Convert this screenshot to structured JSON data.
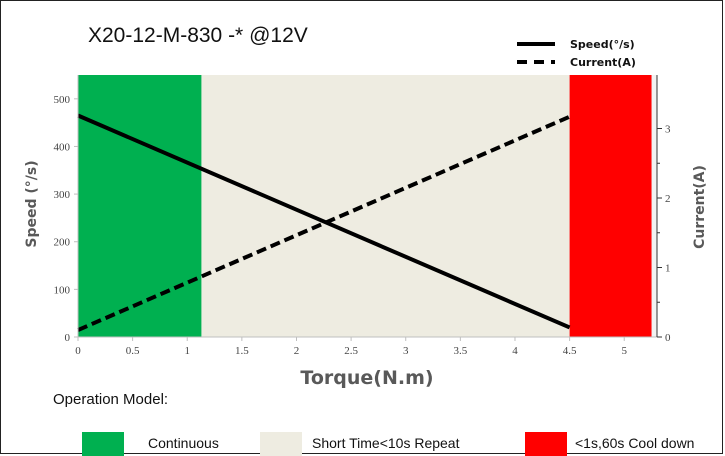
{
  "chart_data": {
    "type": "line",
    "title": "X20-12-M-830 -*  @12V",
    "xlabel": "Torque(N.m)",
    "ylabel": "Speed  (°/s)",
    "y2label": "Current(A)",
    "xlim": [
      0,
      5.3
    ],
    "ylim": [
      0,
      550
    ],
    "y2lim": [
      0,
      3.77
    ],
    "x_ticks": [
      0,
      0.5,
      1,
      1.5,
      2,
      2.5,
      3,
      3.5,
      4,
      4.5,
      5
    ],
    "x_tick_labels": [
      "0",
      "0.5",
      "1",
      "1.5",
      "2",
      "2.5",
      "3",
      "3.5",
      "4",
      "4.5",
      "5"
    ],
    "y_ticks": [
      0,
      100,
      200,
      300,
      400,
      500
    ],
    "y_tick_labels": [
      "0",
      "100",
      "200",
      "300",
      "400",
      "500"
    ],
    "y2_ticks": [
      0,
      1,
      2,
      3
    ],
    "y2_tick_labels": [
      "0",
      "1",
      "2",
      "3"
    ],
    "series": [
      {
        "name": "Speed(°/s)",
        "axis": "left",
        "style": "solid",
        "color": "#000000",
        "x": [
          0,
          4.5
        ],
        "y": [
          465,
          20
        ]
      },
      {
        "name": "Current(A)",
        "axis": "right",
        "style": "dashed",
        "color": "#000000",
        "x": [
          0,
          4.5
        ],
        "y": [
          0.1,
          3.17
        ]
      }
    ],
    "regions": [
      {
        "label": "Continuous",
        "x_range": [
          0,
          1.13
        ],
        "color": "#00b050"
      },
      {
        "label": "Short Time<10s Repeat",
        "x_range": [
          1.13,
          4.5
        ],
        "color": "#eeece1"
      },
      {
        "label": "<1s,60s Cool down",
        "x_range": [
          4.5,
          5.25
        ],
        "color": "#ff0000"
      }
    ],
    "legend_placement": "top-right",
    "grid": false
  },
  "operation_title": "Operation Model:",
  "colors": {
    "plot_background": "#f2f2f2",
    "axis": "#bfbfbf",
    "line": "#000000"
  }
}
